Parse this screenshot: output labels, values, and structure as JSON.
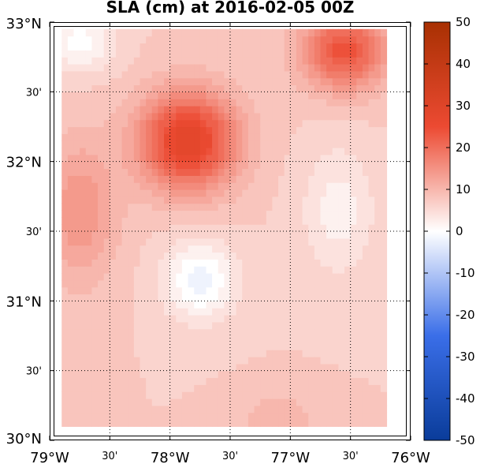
{
  "title": "SLA (cm) at 2016-02-05 00Z",
  "map": {
    "lon_range": [
      -79,
      -76
    ],
    "lat_range": [
      30,
      33
    ],
    "data_extent": {
      "lon": [
        -78.9,
        -76.2
      ],
      "lat": [
        30.1,
        32.95
      ]
    },
    "grid": true,
    "lon_ticks": [
      {
        "value": -79,
        "label": "79°W",
        "major": true
      },
      {
        "value": -78.5,
        "label": "30'",
        "major": false
      },
      {
        "value": -78,
        "label": "78°W",
        "major": true
      },
      {
        "value": -77.5,
        "label": "30'",
        "major": false
      },
      {
        "value": -77,
        "label": "77°W",
        "major": true
      },
      {
        "value": -76.5,
        "label": "30'",
        "major": false
      },
      {
        "value": -76,
        "label": "76°W",
        "major": true
      }
    ],
    "lat_ticks": [
      {
        "value": 33,
        "label": "33°N",
        "major": true
      },
      {
        "value": 32.5,
        "label": "30'",
        "major": false
      },
      {
        "value": 32,
        "label": "32°N",
        "major": true
      },
      {
        "value": 31.5,
        "label": "30'",
        "major": false
      },
      {
        "value": 31,
        "label": "31°N",
        "major": true
      },
      {
        "value": 30.5,
        "label": "30'",
        "major": false
      },
      {
        "value": 30,
        "label": "30°N",
        "major": true
      }
    ],
    "base_sla": 7,
    "features": [
      {
        "lon": -77.85,
        "lat": 32.15,
        "amp": 22,
        "slon": 0.4,
        "slat": 0.35
      },
      {
        "lon": -76.55,
        "lat": 32.8,
        "amp": 17,
        "slon": 0.35,
        "slat": 0.28
      },
      {
        "lon": -78.75,
        "lat": 31.65,
        "amp": 8,
        "slon": 0.3,
        "slat": 0.5
      },
      {
        "lon": -77.75,
        "lat": 31.15,
        "amp": -9,
        "slon": 0.3,
        "slat": 0.28
      },
      {
        "lon": -78.75,
        "lat": 32.85,
        "amp": -7,
        "slon": 0.28,
        "slat": 0.2
      },
      {
        "lon": -76.6,
        "lat": 31.65,
        "amp": -5,
        "slon": 0.3,
        "slat": 0.45
      },
      {
        "lon": -77.1,
        "lat": 30.15,
        "amp": 4,
        "slon": 0.3,
        "slat": 0.2
      }
    ]
  },
  "colorbar": {
    "min": -50,
    "max": 50,
    "ticks": [
      50,
      40,
      30,
      20,
      10,
      0,
      -10,
      -20,
      -30,
      -40,
      -50
    ],
    "colormap": [
      {
        "v": -50,
        "c": "#0a3c9a"
      },
      {
        "v": -25,
        "c": "#3a6ee8"
      },
      {
        "v": 0,
        "c": "#ffffff"
      },
      {
        "v": 25,
        "c": "#ec4a32"
      },
      {
        "v": 50,
        "c": "#a83002"
      }
    ]
  }
}
